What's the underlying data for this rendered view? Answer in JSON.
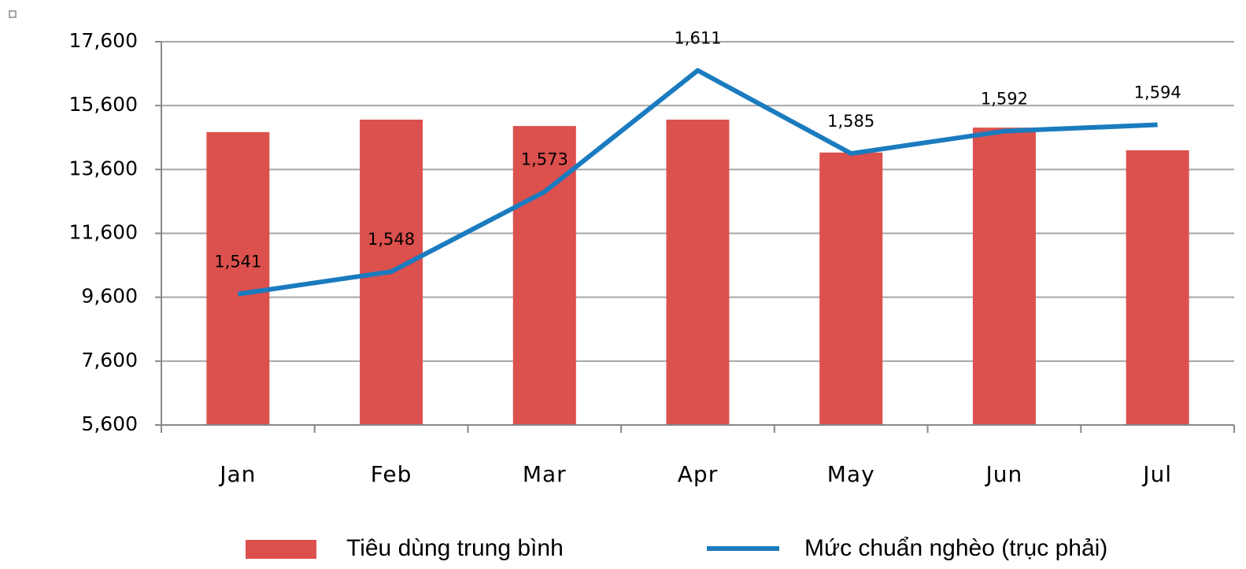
{
  "chart_data": {
    "type": "bar-line",
    "categories": [
      "Jan",
      "Feb",
      "Mar",
      "Apr",
      "May",
      "Jun",
      "Jul"
    ],
    "series": [
      {
        "name": "Tiêu dùng trung bình",
        "type": "bar",
        "color": "#dc504d",
        "values": [
          14770,
          15160,
          14960,
          15160,
          14130,
          14910,
          14200
        ]
      },
      {
        "name": "Mức chuẩn nghèo (trục phải)",
        "type": "line",
        "axis": "y2",
        "color": "#1b7bbf",
        "values": [
          1541,
          1548,
          1573,
          1611,
          1585,
          1592,
          1594
        ],
        "value_labels": [
          "1,541",
          "1,548",
          "1,573",
          "1,611",
          "1,585",
          "1,592",
          "1,594"
        ]
      }
    ],
    "ylim": [
      5600,
      17600
    ],
    "yticks": [
      {
        "value": 5600,
        "label": "5,600"
      },
      {
        "value": 7600,
        "label": "7,600"
      },
      {
        "value": 9600,
        "label": "9,600"
      },
      {
        "value": 11600,
        "label": "11,600"
      },
      {
        "value": 13600,
        "label": "13,600"
      },
      {
        "value": 15600,
        "label": "15,600"
      },
      {
        "value": 17600,
        "label": "17,600"
      }
    ],
    "y2lim": [
      1500,
      1620
    ],
    "grid": true,
    "legend": "bottom"
  }
}
